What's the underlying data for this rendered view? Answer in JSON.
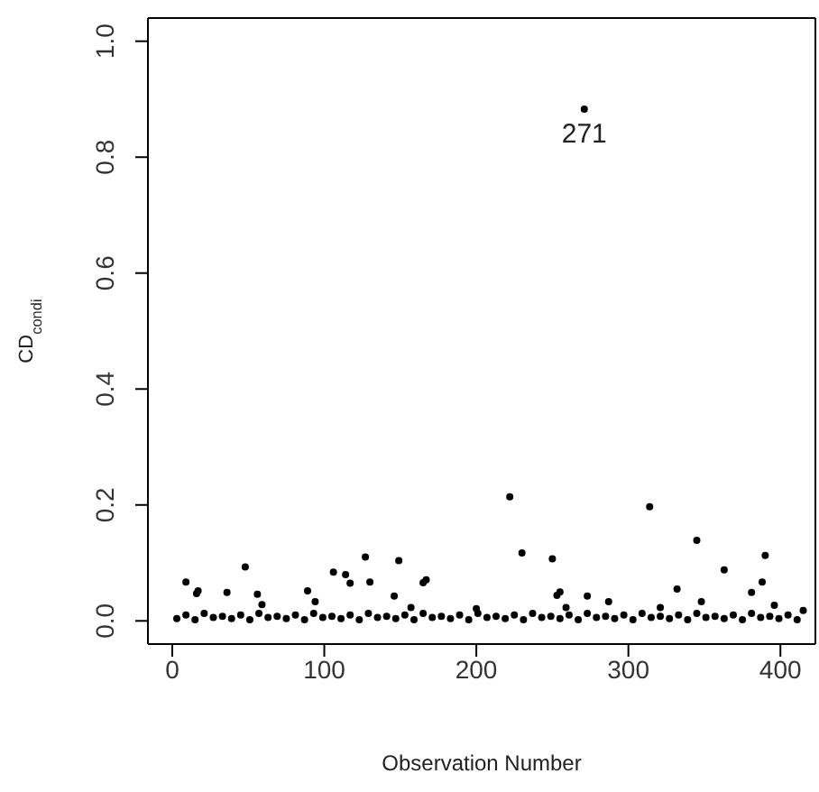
{
  "chart_data": {
    "type": "scatter",
    "xlabel": "Observation Number",
    "ylabel": "CD$_{condi}$",
    "xlim": [
      -16,
      423
    ],
    "ylim": [
      -0.04,
      1.04
    ],
    "xticks": [
      0,
      100,
      200,
      300,
      400
    ],
    "yticks": [
      {
        "value": 0,
        "label": "0.0"
      },
      {
        "value": 0.2,
        "label": "0.2"
      },
      {
        "value": 0.4,
        "label": "0.4"
      },
      {
        "value": 0.6,
        "label": "0.6"
      },
      {
        "value": 0.8,
        "label": "0.8"
      },
      {
        "value": 1,
        "label": "1.0"
      }
    ],
    "grid": false,
    "legend": false,
    "marker": "circle",
    "annotations": [
      {
        "text": "271",
        "x": 271,
        "y": 0.883
      }
    ],
    "series": [
      {
        "color": "#000000",
        "x": [
          3,
          9,
          15,
          21,
          27,
          33,
          39,
          45,
          51,
          57,
          63,
          69,
          75,
          81,
          87,
          93,
          99,
          105,
          111,
          117,
          123,
          129,
          135,
          141,
          147,
          153,
          159,
          165,
          171,
          177,
          183,
          189,
          195,
          201,
          207,
          213,
          219,
          225,
          231,
          237,
          243,
          249,
          255,
          261,
          267,
          273,
          279,
          285,
          291,
          297,
          303,
          309,
          315,
          321,
          327,
          333,
          339,
          345,
          351,
          357,
          363,
          369,
          375,
          381,
          387,
          393,
          399,
          405,
          411
        ],
        "values": [
          0.004,
          0.01,
          0.002,
          0.013,
          0.006,
          0.008,
          0.004,
          0.01,
          0.002,
          0.013,
          0.006,
          0.008,
          0.004,
          0.01,
          0.002,
          0.013,
          0.006,
          0.008,
          0.004,
          0.01,
          0.002,
          0.013,
          0.006,
          0.008,
          0.004,
          0.01,
          0.002,
          0.013,
          0.006,
          0.008,
          0.004,
          0.01,
          0.002,
          0.013,
          0.006,
          0.008,
          0.004,
          0.01,
          0.002,
          0.013,
          0.006,
          0.008,
          0.004,
          0.01,
          0.002,
          0.013,
          0.006,
          0.008,
          0.004,
          0.01,
          0.002,
          0.013,
          0.006,
          0.008,
          0.004,
          0.01,
          0.002,
          0.013,
          0.006,
          0.008,
          0.004,
          0.01,
          0.002,
          0.013,
          0.006,
          0.008,
          0.004,
          0.01,
          0.002
        ]
      },
      {
        "color": "#000000",
        "x": [
          9,
          16,
          17,
          36,
          48,
          56,
          59,
          89,
          94,
          106,
          114,
          117,
          127,
          130,
          146,
          149,
          157,
          165,
          167,
          200,
          222,
          230,
          250,
          253,
          255,
          259,
          271,
          273,
          287,
          314,
          321,
          332,
          345,
          348,
          363,
          381,
          388,
          390,
          396,
          415
        ],
        "values": [
          0.067,
          0.047,
          0.052,
          0.049,
          0.093,
          0.046,
          0.028,
          0.052,
          0.033,
          0.084,
          0.08,
          0.065,
          0.11,
          0.067,
          0.043,
          0.104,
          0.023,
          0.066,
          0.071,
          0.021,
          0.214,
          0.117,
          0.107,
          0.044,
          0.05,
          0.023,
          0.883,
          0.043,
          0.033,
          0.197,
          0.023,
          0.055,
          0.139,
          0.033,
          0.088,
          0.049,
          0.067,
          0.113,
          0.027,
          0.018
        ]
      }
    ]
  }
}
